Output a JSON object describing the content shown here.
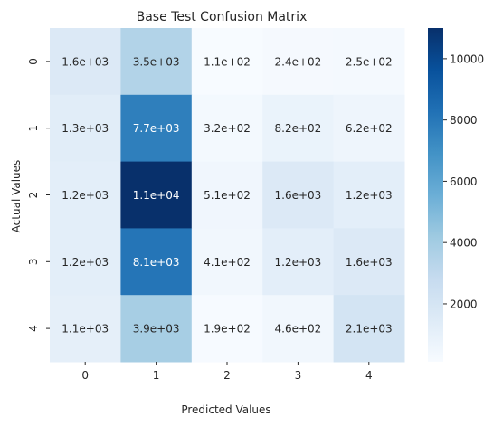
{
  "chart_data": {
    "type": "heatmap",
    "title": "Base Test Confusion Matrix",
    "xlabel": "Predicted Values",
    "ylabel": "Actual Values",
    "x_categories": [
      "0",
      "1",
      "2",
      "3",
      "4"
    ],
    "y_categories": [
      "0",
      "1",
      "2",
      "3",
      "4"
    ],
    "values": [
      [
        1600,
        3500,
        110,
        240,
        250
      ],
      [
        1300,
        7700,
        320,
        820,
        620
      ],
      [
        1200,
        11000,
        510,
        1600,
        1200
      ],
      [
        1200,
        8100,
        410,
        1200,
        1600
      ],
      [
        1100,
        3900,
        190,
        460,
        2100
      ]
    ],
    "cell_labels": [
      [
        "1.6e+03",
        "3.5e+03",
        "1.1e+02",
        "2.4e+02",
        "2.5e+02"
      ],
      [
        "1.3e+03",
        "7.7e+03",
        "3.2e+02",
        "8.2e+02",
        "6.2e+02"
      ],
      [
        "1.2e+03",
        "1.1e+04",
        "5.1e+02",
        "1.6e+03",
        "1.2e+03"
      ],
      [
        "1.2e+03",
        "8.1e+03",
        "4.1e+02",
        "1.2e+03",
        "1.6e+03"
      ],
      [
        "1.1e+03",
        "3.9e+03",
        "1.9e+02",
        "4.6e+02",
        "2.1e+03"
      ]
    ],
    "colormap": "Blues",
    "color_range": [
      110,
      11000
    ],
    "colorbar_ticks": [
      "2000",
      "4000",
      "6000",
      "8000",
      "10000"
    ],
    "colorbar_tick_values": [
      2000,
      4000,
      6000,
      8000,
      10000
    ]
  }
}
